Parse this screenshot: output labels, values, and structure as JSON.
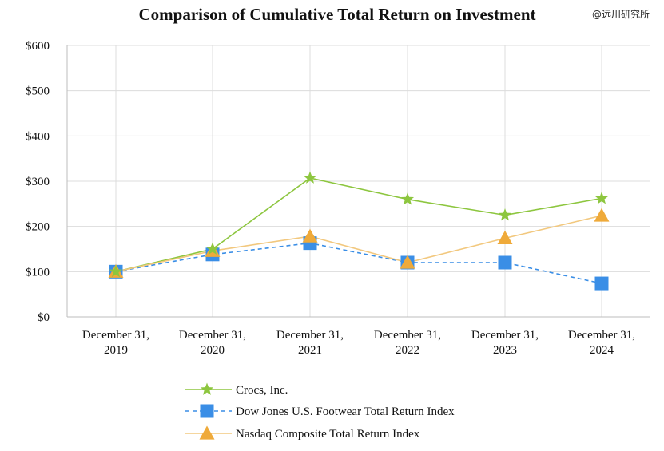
{
  "watermark": "@远川研究所",
  "chart_data": {
    "type": "line",
    "title": "Comparison of Cumulative Total Return on Investment",
    "categories": [
      "December 31,\n2019",
      "December 31,\n2020",
      "December 31,\n2021",
      "December 31,\n2022",
      "December 31,\n2023",
      "December 31,\n2024"
    ],
    "y_ticks": [
      "$0",
      "$100",
      "$200",
      "$300",
      "$400",
      "$500",
      "$600"
    ],
    "ylim": [
      0,
      600
    ],
    "grid": true,
    "legend_position": "bottom",
    "series": [
      {
        "name": "Crocs, Inc.",
        "values": [
          100,
          150,
          307,
          260,
          225,
          262
        ],
        "color": "#8dc63f",
        "marker": "star",
        "dash": "solid"
      },
      {
        "name": "Dow Jones U.S. Footwear Total Return Index",
        "values": [
          100,
          138,
          163,
          120,
          120,
          74
        ],
        "color": "#3a8ee6",
        "marker": "square",
        "dash": "dashed"
      },
      {
        "name": "Nasdaq Composite Total Return Index",
        "values": [
          100,
          146,
          178,
          120,
          174,
          224
        ],
        "color": "#efaa3a",
        "line_color": "#f2c87e",
        "marker": "triangle",
        "dash": "solid"
      }
    ]
  }
}
